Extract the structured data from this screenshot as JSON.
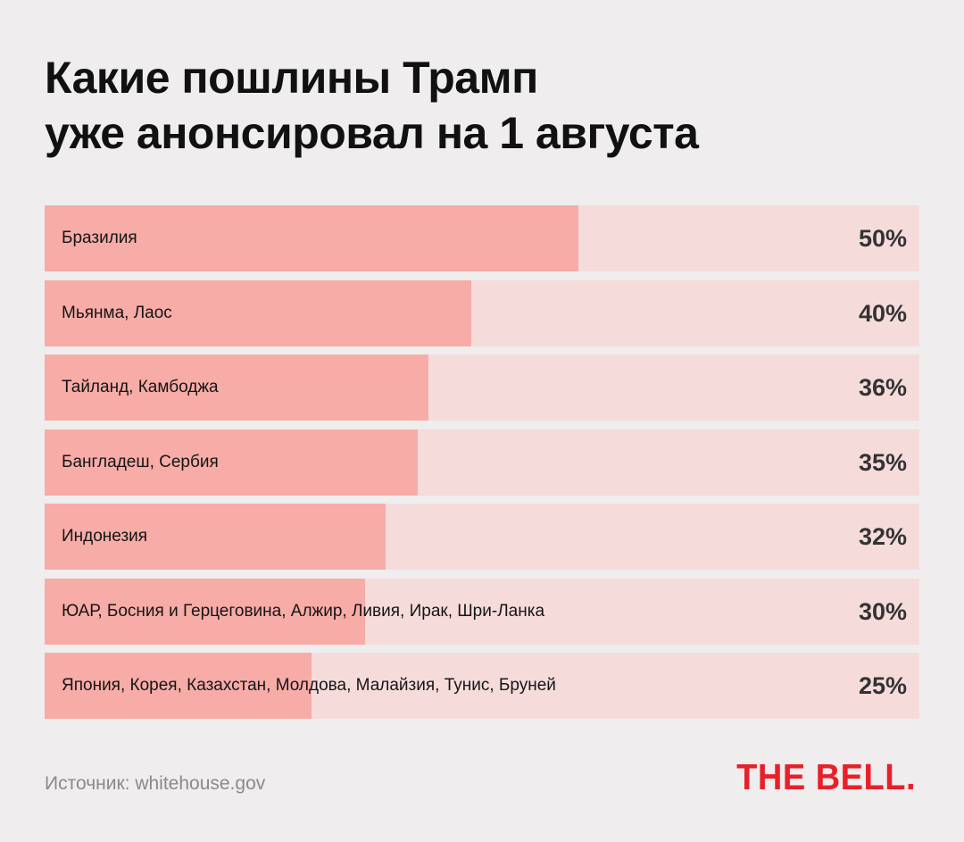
{
  "title": {
    "line1": "Какие пошлины Трамп",
    "line2": "уже анонсировал на 1 августа"
  },
  "chart_data": {
    "type": "bar",
    "orientation": "horizontal",
    "categories": [
      "Бразилия",
      "Мьянма, Лаос",
      "Тайланд, Камбоджа",
      "Бангладеш, Сербия",
      "Индонезия",
      "ЮАР, Босния и Герцеговина, Алжир, Ливия, Ирак, Шри-Ланка",
      "Япония, Корея, Казахстан, Молдова, Малайзия, Тунис, Бруней"
    ],
    "values": [
      50,
      40,
      36,
      35,
      32,
      30,
      25
    ],
    "value_labels": [
      "50%",
      "40%",
      "36%",
      "35%",
      "32%",
      "30%",
      "25%"
    ],
    "xlim": [
      0,
      82
    ],
    "bar_color": "#f7aca7",
    "track_color": "#f5dcdb"
  },
  "footer": {
    "source": "Источник: whitehouse.gov",
    "logo": "THE BELL."
  },
  "colors": {
    "background": "#efeded",
    "brand": "#e8202a"
  }
}
